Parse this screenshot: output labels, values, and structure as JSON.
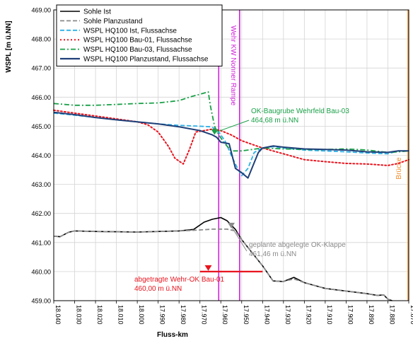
{
  "chart_data": {
    "type": "line",
    "xlabel": "Fluss-km",
    "ylabel": "WSPL [m ü.NN]",
    "xlim": [
      18.04,
      17.87
    ],
    "ylim": [
      459.0,
      469.0
    ],
    "x_reversed": true,
    "grid": true,
    "legend_position": "top-left",
    "x_ticks": [
      "18.040",
      "18.030",
      "18.020",
      "18.010",
      "18.000",
      "17.990",
      "17.980",
      "17.970",
      "17.960",
      "17.950",
      "17.940",
      "17.930",
      "17.920",
      "17.910",
      "17.900",
      "17.890",
      "17.880",
      "17.870"
    ],
    "y_ticks": [
      "459.00",
      "460.00",
      "461.00",
      "462.00",
      "463.00",
      "464.00",
      "465.00",
      "466.00",
      "467.00",
      "468.00",
      "469.00"
    ],
    "series": [
      {
        "name": "Sohle Ist",
        "color": "#000000",
        "style": "solid",
        "x": [
          18.04,
          18.037,
          18.033,
          18.03,
          18.02,
          18.01,
          18.0,
          17.99,
          17.98,
          17.973,
          17.968,
          17.964,
          17.96,
          17.957,
          17.953,
          17.95,
          17.945,
          17.94,
          17.935,
          17.93,
          17.925,
          17.92,
          17.915,
          17.91,
          17.9,
          17.89,
          17.885,
          17.882,
          17.88,
          17.878
        ],
        "y": [
          461.22,
          461.2,
          461.35,
          461.4,
          461.38,
          461.37,
          461.36,
          461.38,
          461.4,
          461.45,
          461.7,
          461.8,
          461.86,
          461.75,
          461.45,
          461.1,
          460.65,
          460.2,
          459.68,
          459.66,
          459.8,
          459.62,
          459.52,
          459.42,
          459.33,
          459.24,
          459.18,
          459.2,
          459.05,
          459.0
        ]
      },
      {
        "name": "Sohle Planzustand",
        "color": "#8a8a8a",
        "style": "dashed",
        "x": [
          18.04,
          18.037,
          18.033,
          18.03,
          18.02,
          18.01,
          18.0,
          17.99,
          17.98,
          17.973,
          17.968,
          17.964,
          17.96,
          17.957,
          17.953,
          17.95,
          17.945,
          17.94,
          17.935,
          17.93,
          17.925,
          17.92,
          17.915,
          17.91,
          17.9,
          17.89,
          17.885,
          17.882,
          17.88,
          17.878
        ],
        "y": [
          461.22,
          461.2,
          461.35,
          461.4,
          461.38,
          461.37,
          461.36,
          461.38,
          461.4,
          461.42,
          461.44,
          461.46,
          461.46,
          461.46,
          461.4,
          461.1,
          460.65,
          460.2,
          459.68,
          459.66,
          459.75,
          459.62,
          459.52,
          459.42,
          459.33,
          459.24,
          459.18,
          459.2,
          459.05,
          459.0
        ]
      },
      {
        "name": "WSPL HQ100 Ist, Flussachse",
        "color": "#2ab0e8",
        "style": "dashed",
        "x": [
          18.04,
          18.03,
          18.02,
          18.01,
          18.0,
          17.99,
          17.98,
          17.97,
          17.965,
          17.962,
          17.958,
          17.955,
          17.952,
          17.95,
          17.947,
          17.944,
          17.94,
          17.935,
          17.93,
          17.92,
          17.91,
          17.9,
          17.89,
          17.88,
          17.875,
          17.87
        ],
        "y": [
          465.45,
          465.38,
          465.3,
          465.22,
          465.15,
          465.08,
          465.03,
          465.0,
          464.98,
          464.9,
          464.5,
          464.0,
          463.55,
          463.3,
          463.55,
          464.1,
          464.25,
          464.3,
          464.25,
          464.18,
          464.15,
          464.12,
          464.08,
          464.05,
          464.15,
          464.15
        ]
      },
      {
        "name": "WSPL HQ100 Bau-01, Flussachse",
        "color": "#e8141e",
        "style": "dotted",
        "x": [
          18.04,
          18.03,
          18.02,
          18.01,
          18.0,
          17.995,
          17.99,
          17.985,
          17.982,
          17.978,
          17.975,
          17.972,
          17.968,
          17.964,
          17.96,
          17.955,
          17.95,
          17.94,
          17.93,
          17.92,
          17.91,
          17.9,
          17.89,
          17.88,
          17.875,
          17.87
        ],
        "y": [
          465.55,
          465.45,
          465.35,
          465.25,
          465.15,
          465.05,
          464.8,
          464.3,
          463.9,
          463.7,
          464.2,
          464.8,
          464.85,
          464.9,
          464.85,
          464.7,
          464.5,
          464.25,
          464.05,
          463.85,
          463.78,
          463.72,
          463.7,
          463.65,
          463.72,
          463.85
        ]
      },
      {
        "name": "WSPL HQ100 Bau-03, Flussachse",
        "color": "#1aa048",
        "style": "dashdot",
        "x": [
          18.04,
          18.03,
          18.02,
          18.01,
          18.0,
          17.99,
          17.98,
          17.975,
          17.97,
          17.966,
          17.965,
          17.963,
          17.961,
          17.958,
          17.955,
          17.95,
          17.945,
          17.94,
          17.93,
          17.92,
          17.91,
          17.9,
          17.89,
          17.88,
          17.875,
          17.87
        ],
        "y": [
          465.78,
          465.72,
          465.72,
          465.75,
          465.78,
          465.8,
          465.88,
          466.0,
          466.1,
          466.18,
          465.7,
          465.0,
          464.7,
          464.4,
          464.15,
          464.15,
          464.2,
          464.25,
          464.22,
          464.2,
          464.2,
          464.22,
          464.18,
          464.1,
          464.12,
          464.15
        ]
      },
      {
        "name": "WSPL HQ100 Planzustand, Flussachse",
        "color": "#1f3f78",
        "style": "solid",
        "x": [
          18.04,
          18.03,
          18.02,
          18.01,
          18.0,
          17.99,
          17.98,
          17.97,
          17.964,
          17.962,
          17.96,
          17.956,
          17.953,
          17.95,
          17.947,
          17.942,
          17.94,
          17.935,
          17.93,
          17.92,
          17.91,
          17.9,
          17.89,
          17.88,
          17.875,
          17.87
        ],
        "y": [
          465.48,
          465.4,
          465.3,
          465.22,
          465.15,
          465.08,
          464.98,
          464.85,
          464.7,
          464.62,
          464.45,
          464.4,
          463.55,
          463.4,
          463.22,
          464.1,
          464.25,
          464.32,
          464.28,
          464.22,
          464.2,
          464.18,
          464.12,
          464.1,
          464.15,
          464.15
        ]
      }
    ],
    "vertical_lines": [
      {
        "x": 17.961,
        "color": "#d020d8",
        "label": ""
      },
      {
        "x": 17.951,
        "color": "#d020d8",
        "label": "Wehr KW Nonner Rampe"
      },
      {
        "x": 17.87,
        "color": "#f08c2a",
        "label": "Brücke"
      }
    ],
    "annotations": [
      {
        "text": [
          "OK-Baugrube Wehrfeld Bau-03",
          "464,68 m ü.NN"
        ],
        "color": "#1aa048",
        "marker_x": 17.963,
        "marker_y": 464.68
      },
      {
        "text": [
          "geplante abgelegte OK-Klappe",
          "461,46 m ü.NN"
        ],
        "color": "#8a8a8a",
        "marker_x": 17.955,
        "marker_y": 461.46
      },
      {
        "text": [
          "abgetragte Wehr-OK Bau-01",
          "460,00 m ü.NN"
        ],
        "color": "#e8141e",
        "marker_x": 17.966,
        "marker_y": 460.0,
        "segment": [
          17.97,
          17.94
        ]
      }
    ]
  }
}
